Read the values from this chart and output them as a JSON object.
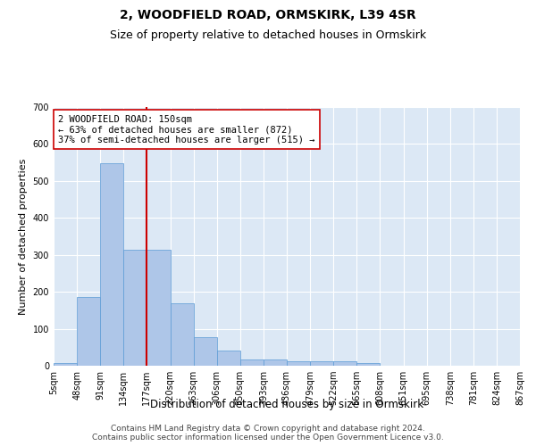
{
  "title": "2, WOODFIELD ROAD, ORMSKIRK, L39 4SR",
  "subtitle": "Size of property relative to detached houses in Ormskirk",
  "xlabel": "Distribution of detached houses by size in Ormskirk",
  "ylabel": "Number of detached properties",
  "bar_values": [
    8,
    185,
    548,
    315,
    315,
    168,
    77,
    40,
    17,
    17,
    12,
    12,
    12,
    8,
    0,
    0,
    0,
    0,
    0,
    0
  ],
  "bar_labels": [
    "5sqm",
    "48sqm",
    "91sqm",
    "134sqm",
    "177sqm",
    "220sqm",
    "263sqm",
    "306sqm",
    "350sqm",
    "393sqm",
    "436sqm",
    "479sqm",
    "522sqm",
    "565sqm",
    "608sqm",
    "651sqm",
    "695sqm",
    "738sqm",
    "781sqm",
    "824sqm",
    "867sqm"
  ],
  "bar_color": "#aec6e8",
  "bar_edge_color": "#5b9bd5",
  "vline_x": 3.5,
  "vline_color": "#cc0000",
  "annotation_text": "2 WOODFIELD ROAD: 150sqm\n← 63% of detached houses are smaller (872)\n37% of semi-detached houses are larger (515) →",
  "annotation_box_color": "#ffffff",
  "annotation_box_edge": "#cc0000",
  "ylim": [
    0,
    700
  ],
  "yticks": [
    0,
    100,
    200,
    300,
    400,
    500,
    600,
    700
  ],
  "background_color": "#dce8f5",
  "grid_color": "#ffffff",
  "footer_text": "Contains HM Land Registry data © Crown copyright and database right 2024.\nContains public sector information licensed under the Open Government Licence v3.0.",
  "title_fontsize": 10,
  "subtitle_fontsize": 9,
  "xlabel_fontsize": 8.5,
  "ylabel_fontsize": 8,
  "annotation_fontsize": 7.5,
  "footer_fontsize": 6.5,
  "tick_fontsize": 7
}
